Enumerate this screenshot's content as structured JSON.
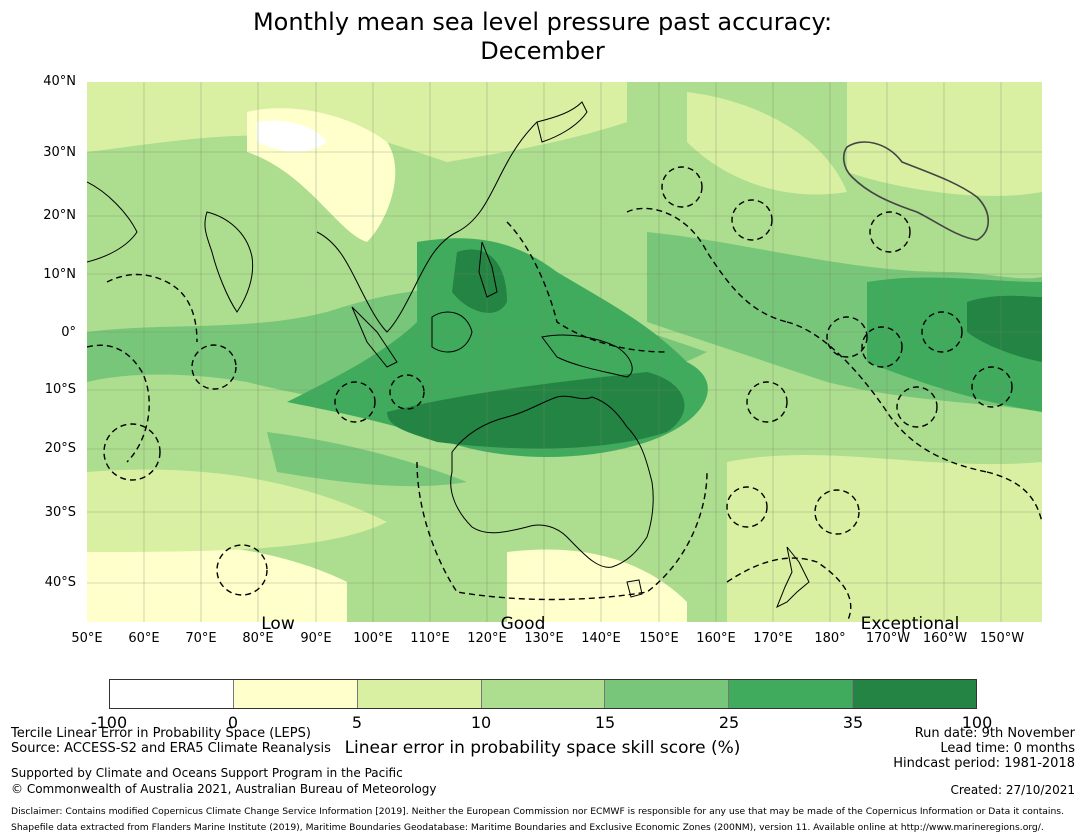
{
  "title": {
    "line1": "Monthly mean sea level pressure past accuracy:",
    "line2": "December"
  },
  "map": {
    "lat_labels": [
      "40°N",
      "30°N",
      "20°N",
      "10°N",
      "0°",
      "10°S",
      "20°S",
      "30°S",
      "40°S"
    ],
    "lon_labels": [
      "50°E",
      "60°E",
      "70°E",
      "80°E",
      "90°E",
      "100°E",
      "110°E",
      "120°E",
      "130°E",
      "140°E",
      "150°E",
      "160°E",
      "170°E",
      "180°",
      "170°W",
      "160°W",
      "150°W"
    ],
    "category_labels": [
      "Low",
      "Good",
      "Exceptional"
    ],
    "palette": [
      "#ffffff",
      "#ffffcc",
      "#d9f0a3",
      "#addd8e",
      "#78c679",
      "#41ab5d",
      "#238443"
    ]
  },
  "colorbar": {
    "ticks": [
      "-100",
      "0",
      "5",
      "10",
      "15",
      "25",
      "35",
      "100"
    ],
    "label": "Linear error in probability space skill score (%)"
  },
  "footer": {
    "left1": "Tercile Linear Error in Probability Space (LEPS)",
    "left2": "Source: ACCESS-S2 and ERA5 Climate Reanalysis",
    "left3": "Supported by Climate and Oceans Support Program in the Pacific",
    "left4": "© Commonwealth of Australia 2021, Australian Bureau of Meteorology",
    "right1": "Run date: 9th November",
    "right2": "Lead time: 0 months",
    "right3": "Hindcast period: 1981-2018",
    "created": "Created: 27/10/2021",
    "disclaimer1": "Disclaimer: Contains modified Copernicus Climate Change Service Information [2019]. Neither the European Commission nor ECMWF is responsible for any use that may be made of the Copernicus Information or Data it contains.",
    "disclaimer2": "Shapefile data extracted from Flanders Marine Institute (2019), Maritime Boundaries Geodatabase: Maritime Boundaries and Exclusive Economic Zones (200NM), version 11. Available online at http://www.marineregions.org/."
  }
}
